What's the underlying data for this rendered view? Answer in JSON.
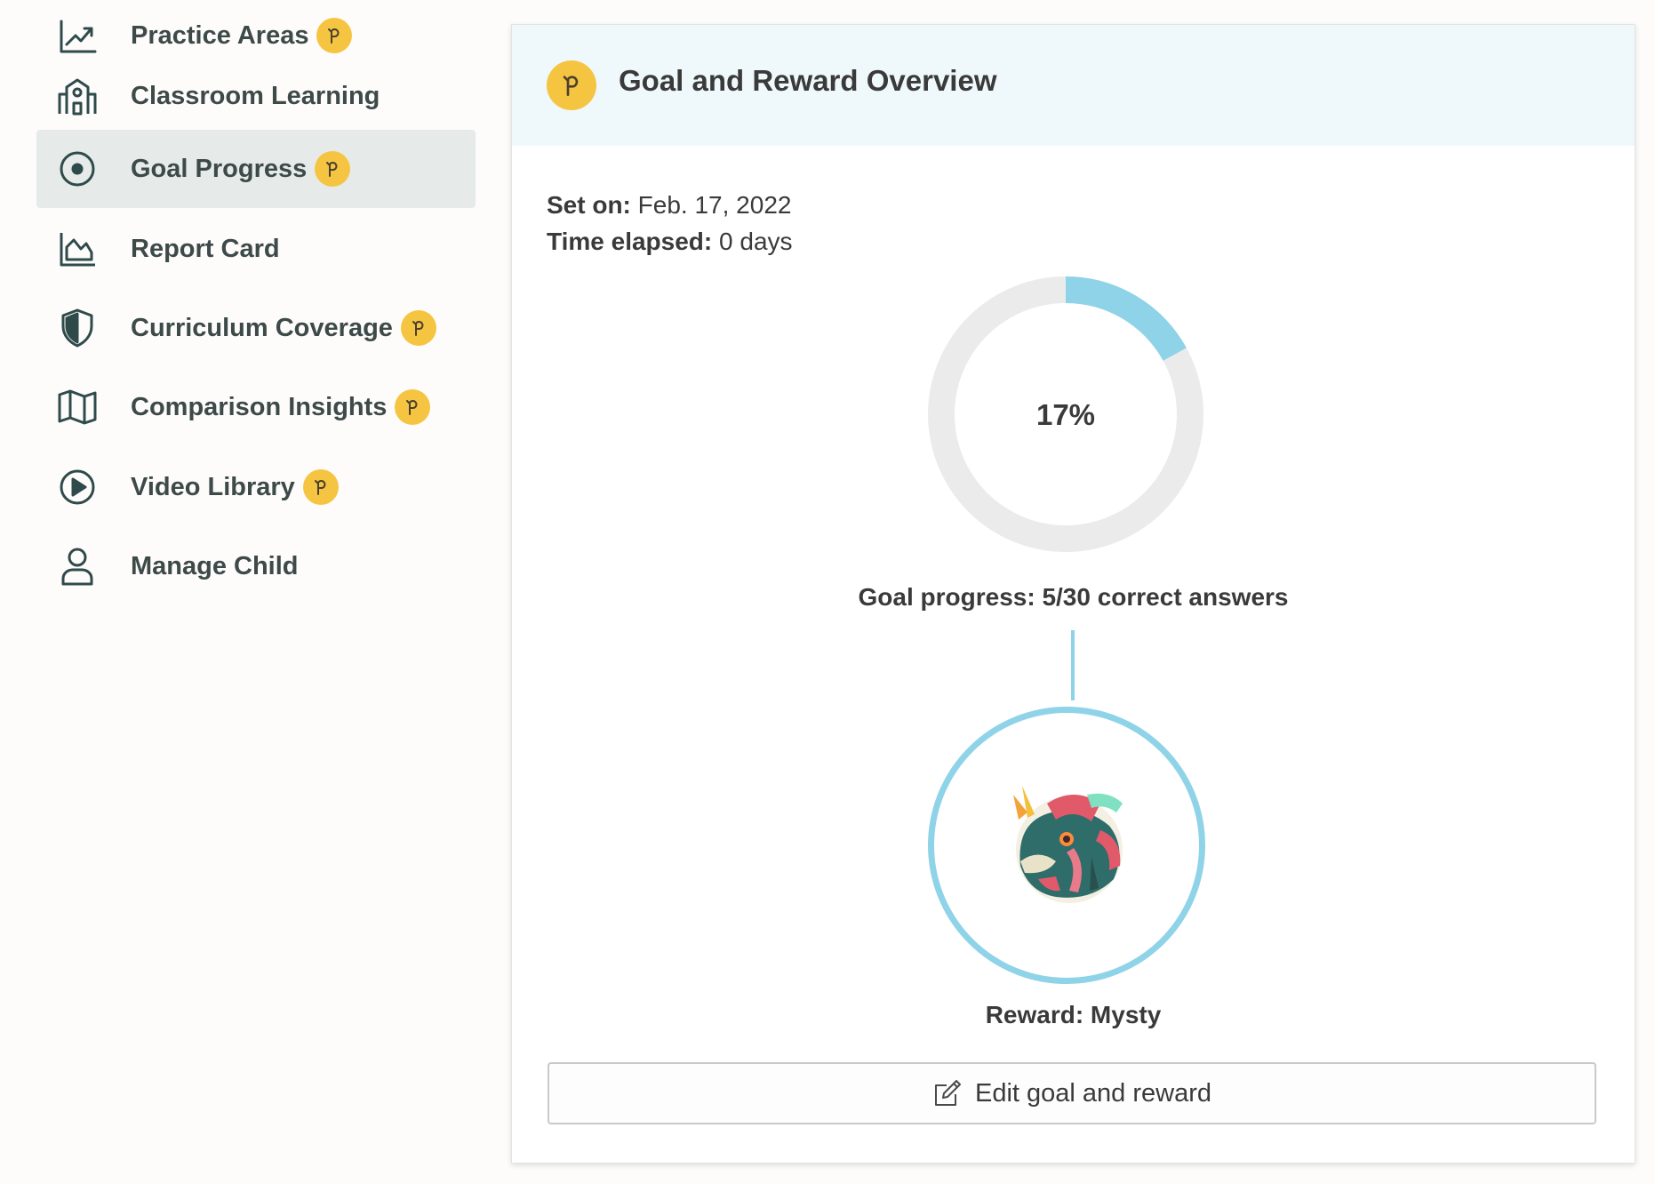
{
  "sidebar": {
    "items": [
      {
        "label": "Practice Areas",
        "icon": "trending-up-icon",
        "premium": true,
        "active": false
      },
      {
        "label": "Classroom Learning",
        "icon": "school-icon",
        "premium": false,
        "active": false
      },
      {
        "label": "Goal Progress",
        "icon": "target-icon",
        "premium": true,
        "active": true
      },
      {
        "label": "Report Card",
        "icon": "area-chart-icon",
        "premium": false,
        "active": false
      },
      {
        "label": "Curriculum Coverage",
        "icon": "shield-icon",
        "premium": true,
        "active": false
      },
      {
        "label": "Comparison Insights",
        "icon": "map-icon",
        "premium": true,
        "active": false
      },
      {
        "label": "Video Library",
        "icon": "play-circle-icon",
        "premium": true,
        "active": false
      },
      {
        "label": "Manage Child",
        "icon": "user-icon",
        "premium": false,
        "active": false
      }
    ]
  },
  "card": {
    "title": "Goal and Reward Overview",
    "set_on_label": "Set on:",
    "set_on_value": "Feb. 17, 2022",
    "elapsed_label": "Time elapsed:",
    "elapsed_value": "0 days",
    "progress_percent_text": "17%",
    "progress_fraction": 0.17,
    "goal_progress_text": "Goal progress: 5/30 correct answers",
    "reward_text": "Reward: Mysty",
    "edit_button_label": "Edit goal and reward"
  },
  "colors": {
    "accent_yellow": "#f5c542",
    "progress_blue": "#8fd3e8",
    "track_gray": "#ebebeb",
    "header_bg": "#eff8fb",
    "nav_text": "#3d4a49"
  }
}
